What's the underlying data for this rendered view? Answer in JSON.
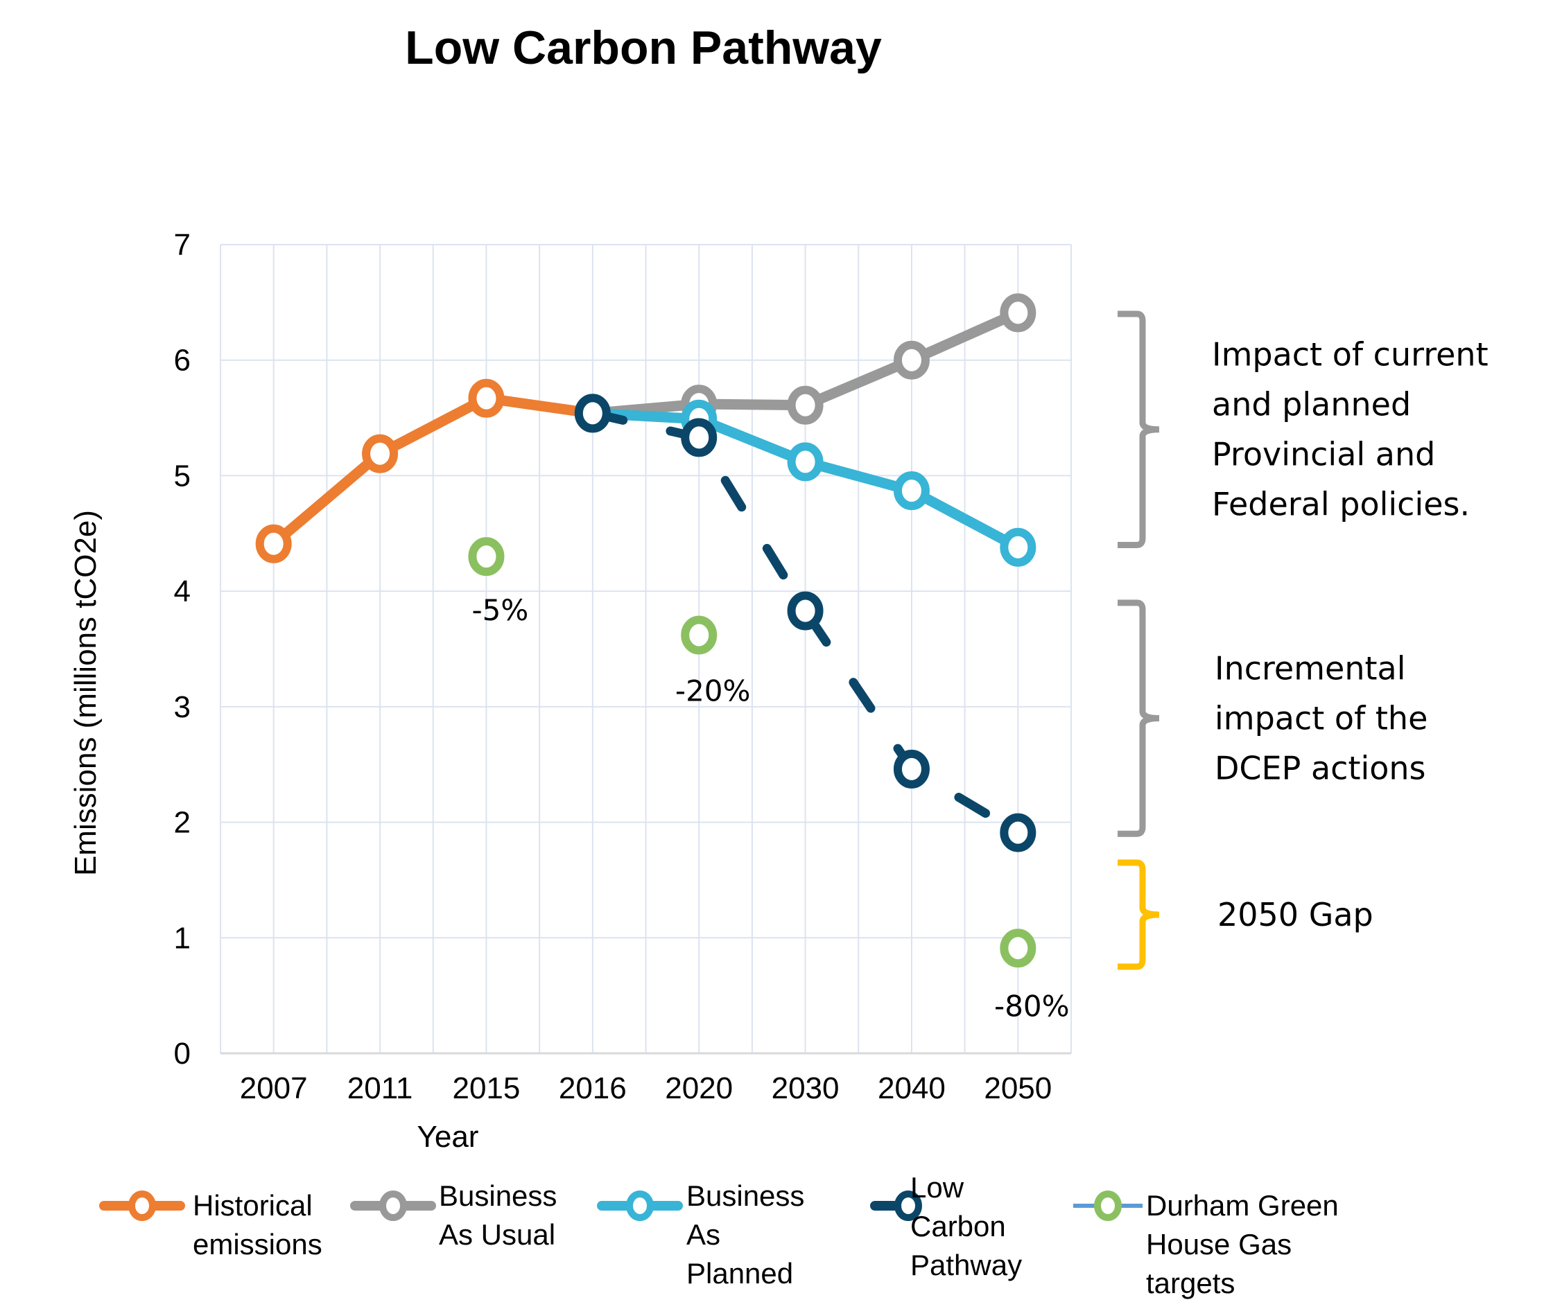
{
  "chart_data": {
    "type": "line",
    "title": "Low Carbon Pathway",
    "xlabel": "Year",
    "ylabel": "Emissions (millions tCO2e)",
    "categories": [
      "2007",
      "2011",
      "2015",
      "2016",
      "2020",
      "2030",
      "2040",
      "2050"
    ],
    "ylim": [
      0,
      7
    ],
    "yticks": [
      "0",
      "1",
      "2",
      "3",
      "4",
      "5",
      "6",
      "7"
    ],
    "grid": true,
    "legend_position": "bottom",
    "series": [
      {
        "name": "Historical emissions",
        "legend_lines": [
          "Historical",
          "emissions"
        ],
        "color": "#ED7D31",
        "dashed": false,
        "values": [
          4.41,
          5.19,
          5.67,
          5.54,
          null,
          null,
          null,
          null
        ]
      },
      {
        "name": "Business As Usual",
        "legend_lines": [
          "Business",
          "As Usual"
        ],
        "color": "#999999",
        "dashed": false,
        "values": [
          null,
          null,
          null,
          5.54,
          5.62,
          5.61,
          6.0,
          6.41
        ]
      },
      {
        "name": "Business As Planned",
        "legend_lines": [
          "Business",
          "As",
          "Planned"
        ],
        "color": "#38B4D6",
        "dashed": false,
        "values": [
          null,
          null,
          null,
          5.54,
          5.49,
          5.12,
          4.87,
          4.38
        ]
      },
      {
        "name": "Low Carbon Pathway",
        "legend_lines": [
          "Low",
          "Carbon",
          "Pathway"
        ],
        "color": "#0B4669",
        "dashed": true,
        "values": [
          null,
          null,
          null,
          5.54,
          5.33,
          3.83,
          2.46,
          1.91
        ]
      },
      {
        "name": "Durham Green House Gas targets",
        "legend_lines": [
          "Durham Green",
          "House Gas",
          "targets"
        ],
        "color": "#8BC060",
        "line_color": "#5B9BD5",
        "markers_only": true,
        "values": [
          null,
          null,
          4.3,
          null,
          3.62,
          null,
          null,
          0.91
        ]
      }
    ],
    "annotations": [
      {
        "text": "-5%",
        "category": "2015",
        "y": 3.75
      },
      {
        "text": "-20%",
        "category": "2020",
        "y": 3.05
      },
      {
        "text": "-80%",
        "category": "2050",
        "y": 0.32
      }
    ],
    "brackets": [
      {
        "color": "#999999",
        "from": 6.4,
        "to": 4.4,
        "lines": [
          "Impact of current",
          "and planned",
          "Provincial and",
          "Federal policies."
        ]
      },
      {
        "color": "#999999",
        "from": 3.9,
        "to": 1.9,
        "lines": [
          "Incremental",
          "impact of the",
          "DCEP actions"
        ]
      },
      {
        "color": "#FFC000",
        "from": 1.65,
        "to": 0.75,
        "lines": [
          "2050 Gap"
        ]
      }
    ]
  }
}
